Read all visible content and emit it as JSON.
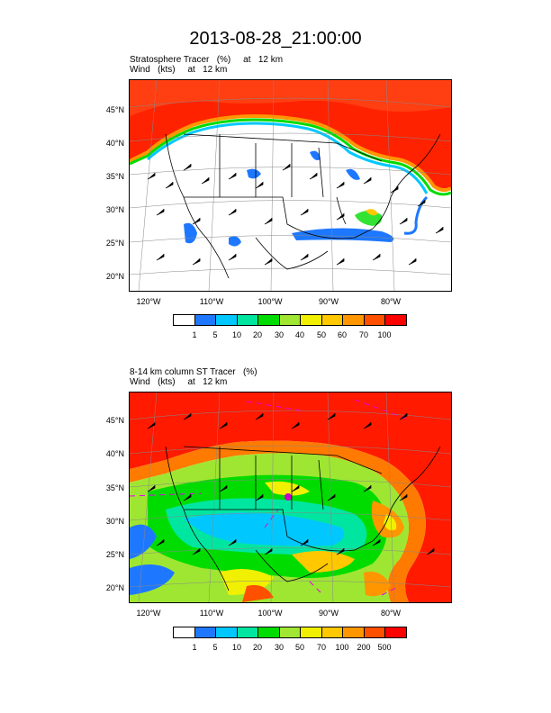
{
  "title": "2013-08-28_21:00:00",
  "panels": [
    {
      "id": "top",
      "subtitle_line1": "Stratosphere Tracer   (%)     at   12 km",
      "subtitle_line2": "Wind   (kts)     at   12 km",
      "lat_labels": [
        "45°N",
        "40°N",
        "35°N",
        "30°N",
        "25°N",
        "20°N"
      ],
      "lon_labels": [
        "120°W",
        "110°W",
        "100°W",
        "90°W",
        "80°W"
      ],
      "colorbar": {
        "colors": [
          "#ffffff",
          "#1e78ff",
          "#00c8ff",
          "#00e6a0",
          "#00dc00",
          "#a0e632",
          "#f0f000",
          "#ffc800",
          "#ff9600",
          "#ff5000",
          "#ff0000"
        ],
        "labels": [
          "1",
          "5",
          "10",
          "20",
          "30",
          "40",
          "50",
          "60",
          "70",
          "100"
        ]
      }
    },
    {
      "id": "bottom",
      "subtitle_line1": "8-14 km column ST Tracer   (%)",
      "subtitle_line2": "Wind   (kts)     at   12 km",
      "lat_labels": [
        "45°N",
        "40°N",
        "35°N",
        "30°N",
        "25°N",
        "20°N"
      ],
      "lon_labels": [
        "120°W",
        "110°W",
        "100°W",
        "90°W",
        "80°W"
      ],
      "colorbar": {
        "colors": [
          "#ffffff",
          "#1e78ff",
          "#00c8ff",
          "#00e6a0",
          "#00dc00",
          "#a0e632",
          "#f0f000",
          "#ffc800",
          "#ff9600",
          "#ff5000",
          "#ff0000"
        ],
        "labels": [
          "1",
          "5",
          "10",
          "20",
          "30",
          "50",
          "70",
          "100",
          "200",
          "500"
        ]
      }
    }
  ]
}
